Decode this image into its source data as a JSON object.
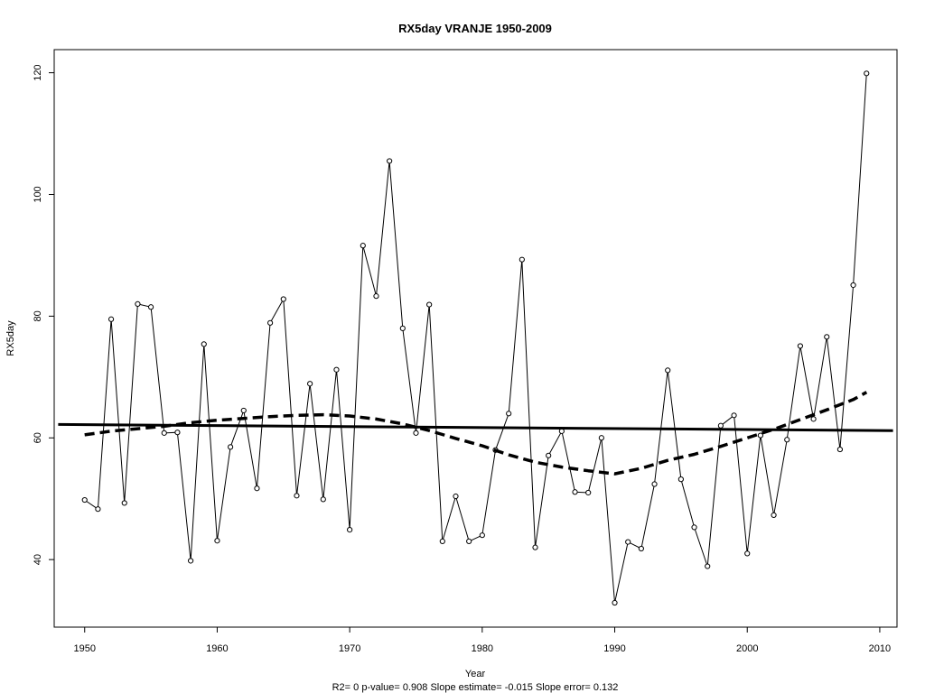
{
  "chart_data": {
    "type": "line",
    "title": "RX5day   VRANJE 1950-2009",
    "xlabel": "Year",
    "ylabel": "RX5day",
    "footer": "R2= 0  p-value= 0.908  Slope estimate= -0.015  Slope error= 0.132",
    "xlim": [
      1947.7,
      2011.3
    ],
    "ylim": [
      28.9,
      123.8
    ],
    "x_ticks": [
      1950,
      1960,
      1970,
      1980,
      1990,
      2000,
      2010
    ],
    "y_ticks": [
      40,
      60,
      80,
      100,
      120
    ],
    "grid": false,
    "legend": "none",
    "series": [
      {
        "role": "observed",
        "style": "thin line with open circles",
        "x": [
          1950,
          1951,
          1952,
          1953,
          1954,
          1955,
          1956,
          1957,
          1958,
          1959,
          1960,
          1961,
          1962,
          1963,
          1964,
          1965,
          1966,
          1967,
          1968,
          1969,
          1970,
          1971,
          1972,
          1973,
          1974,
          1975,
          1976,
          1977,
          1978,
          1979,
          1980,
          1981,
          1982,
          1983,
          1984,
          1985,
          1986,
          1987,
          1988,
          1989,
          1990,
          1991,
          1992,
          1993,
          1994,
          1995,
          1996,
          1997,
          1998,
          1999,
          2000,
          2001,
          2002,
          2003,
          2004,
          2005,
          2006,
          2007,
          2008,
          2009
        ],
        "y": [
          49.8,
          48.3,
          79.5,
          49.3,
          82.0,
          81.5,
          60.8,
          60.9,
          39.8,
          75.4,
          43.1,
          58.5,
          64.5,
          51.7,
          78.9,
          82.8,
          50.5,
          68.9,
          49.9,
          71.2,
          44.9,
          91.6,
          83.3,
          105.5,
          78.0,
          60.8,
          81.9,
          43.0,
          50.4,
          43.0,
          44.0,
          58.0,
          64.0,
          89.3,
          42.0,
          57.1,
          61.1,
          51.1,
          51.0,
          60.0,
          32.9,
          42.9,
          41.8,
          52.4,
          71.1,
          53.2,
          45.3,
          38.9,
          62.0,
          63.7,
          41.0,
          60.4,
          47.3,
          59.7,
          75.1,
          63.1,
          76.6,
          58.1,
          85.1,
          119.9
        ]
      },
      {
        "role": "linear trend",
        "style": "thick solid line",
        "x": [
          1948,
          2011
        ],
        "y": [
          62.2,
          61.2
        ]
      },
      {
        "role": "loess smooth",
        "style": "thick dashed line",
        "x": [
          1950,
          1952,
          1954,
          1956,
          1958,
          1960,
          1962,
          1964,
          1966,
          1968,
          1970,
          1972,
          1974,
          1976,
          1978,
          1980,
          1982,
          1984,
          1986,
          1988,
          1990,
          1992,
          1994,
          1996,
          1998,
          2000,
          2002,
          2004,
          2006,
          2008,
          2009
        ],
        "y": [
          60.5,
          61.1,
          61.5,
          61.9,
          62.5,
          62.9,
          63.2,
          63.5,
          63.7,
          63.8,
          63.6,
          63.1,
          62.3,
          61.2,
          59.9,
          58.7,
          57.2,
          56.0,
          55.2,
          54.6,
          54.1,
          55.0,
          56.3,
          57.3,
          58.6,
          60.0,
          61.4,
          63.0,
          64.6,
          66.3,
          67.5
        ]
      }
    ]
  }
}
